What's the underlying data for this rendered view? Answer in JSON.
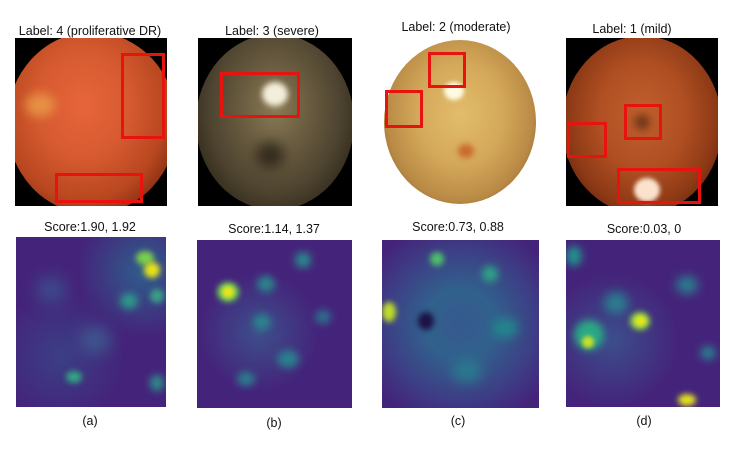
{
  "panels": [
    {
      "label": "Label: 4 (proliferative DR)",
      "score": "Score:1.90, 1.92",
      "caption": "(a)"
    },
    {
      "label": "Label: 3 (severe)",
      "score": "Score:1.14, 1.37",
      "caption": "(b)"
    },
    {
      "label": "Label: 2 (moderate)",
      "score": "Score:0.73, 0.88",
      "caption": "(c)"
    },
    {
      "label": "Label: 1 (mild)",
      "score": "Score:0.03, 0",
      "caption": "(d)"
    }
  ],
  "colors": {
    "lesion_box": "#e8120e",
    "heatmap_low": "#46237a",
    "heatmap_high": "#e6e21a"
  }
}
